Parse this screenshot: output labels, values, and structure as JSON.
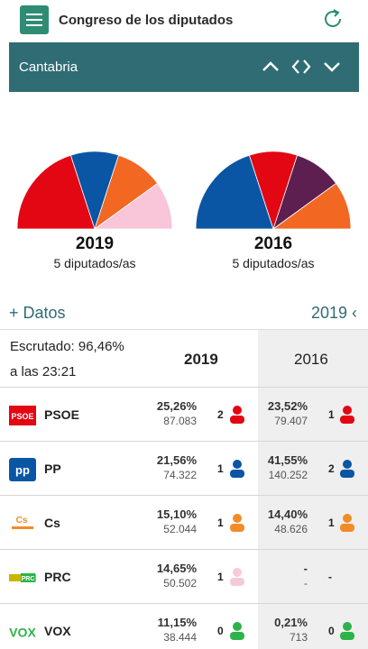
{
  "header": {
    "title": "Congreso de los diputados",
    "menu_icon": "hamburger-icon",
    "refresh_icon": "refresh-icon"
  },
  "region": {
    "name": "Cantabria"
  },
  "charts": [
    {
      "year": "2019",
      "seats_label": "5 diputados/as",
      "seats": [
        2,
        1,
        1,
        1
      ],
      "colors": [
        "#e30613",
        "#0a56a4",
        "#f26722",
        "#f8c5d9"
      ]
    },
    {
      "year": "2016",
      "seats_label": "5 diputados/as",
      "seats": [
        2,
        1,
        1,
        1
      ],
      "colors": [
        "#0a56a4",
        "#e30613",
        "#5c1f4f",
        "#f26722"
      ]
    }
  ],
  "datos": {
    "label": "+ Datos",
    "year": "2019",
    "chevron": "‹"
  },
  "table": {
    "escrutado": "Escrutado: 96,46%",
    "hora": "a las 23:21",
    "col_current": "2019",
    "col_previous": "2016",
    "rows": [
      {
        "party": "PSOE",
        "pct": "25,26%",
        "votes": "87.083",
        "seats": "2",
        "color": "#e30613",
        "pct16": "23,52%",
        "votes16": "79.407",
        "seats16": "1",
        "color16": "#e30613"
      },
      {
        "party": "PP",
        "pct": "21,56%",
        "votes": "74.322",
        "seats": "1",
        "color": "#0a56a4",
        "pct16": "41,55%",
        "votes16": "140.252",
        "seats16": "2",
        "color16": "#0a56a4"
      },
      {
        "party": "Cs",
        "pct": "15,10%",
        "votes": "52.044",
        "seats": "1",
        "color": "#f28c28",
        "pct16": "14,40%",
        "votes16": "48.626",
        "seats16": "1",
        "color16": "#f28c28"
      },
      {
        "party": "PRC",
        "pct": "14,65%",
        "votes": "50.502",
        "seats": "1",
        "color": "#f6cad6",
        "pct16": "-",
        "votes16": "-",
        "seats16": "-",
        "color16": ""
      },
      {
        "party": "VOX",
        "pct": "11,15%",
        "votes": "38.444",
        "seats": "0",
        "color": "#2db34a",
        "pct16": "0,21%",
        "votes16": "713",
        "seats16": "0",
        "color16": "#2db34a"
      }
    ]
  }
}
